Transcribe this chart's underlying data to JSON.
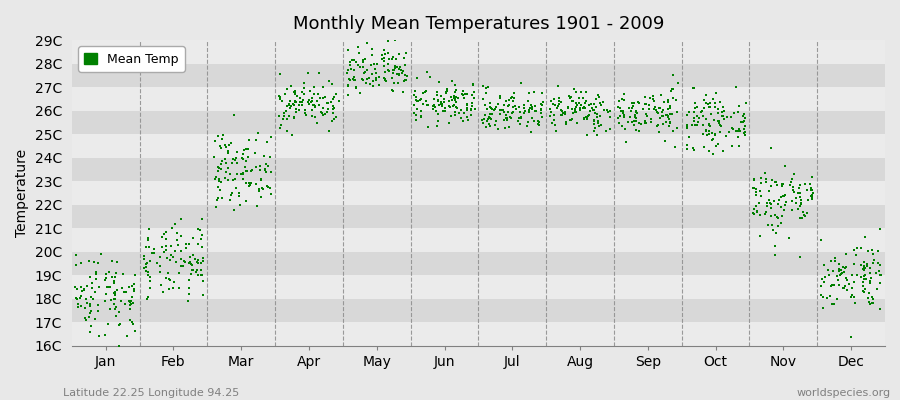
{
  "title": "Monthly Mean Temperatures 1901 - 2009",
  "ylabel": "Temperature",
  "subtitle": "Latitude 22.25 Longitude 94.25",
  "watermark": "worldspecies.org",
  "legend_label": "Mean Temp",
  "marker_color": "#008000",
  "background_color": "#e8e8e8",
  "plot_bg_light": "#ebebeb",
  "plot_bg_dark": "#d8d8d8",
  "month_names": [
    "Jan",
    "Feb",
    "Mar",
    "Apr",
    "May",
    "Jun",
    "Jul",
    "Aug",
    "Sep",
    "Oct",
    "Nov",
    "Dec"
  ],
  "year_start": 1901,
  "year_end": 2009,
  "monthly_means": [
    18.2,
    19.5,
    23.5,
    26.3,
    27.6,
    26.3,
    26.0,
    26.0,
    25.9,
    25.5,
    22.2,
    19.0
  ],
  "monthly_stds": [
    0.9,
    0.8,
    0.75,
    0.5,
    0.55,
    0.45,
    0.45,
    0.45,
    0.5,
    0.55,
    0.8,
    0.75
  ],
  "ylim_min": 16,
  "ylim_max": 29,
  "yticks": [
    16,
    17,
    18,
    19,
    20,
    21,
    22,
    23,
    24,
    25,
    26,
    27,
    28,
    29
  ],
  "ytick_labels": [
    "16C",
    "17C",
    "18C",
    "19C",
    "20C",
    "21C",
    "22C",
    "23C",
    "24C",
    "25C",
    "26C",
    "27C",
    "28C",
    "29C"
  ],
  "title_fontsize": 13,
  "label_fontsize": 10,
  "subtitle_fontsize": 8
}
